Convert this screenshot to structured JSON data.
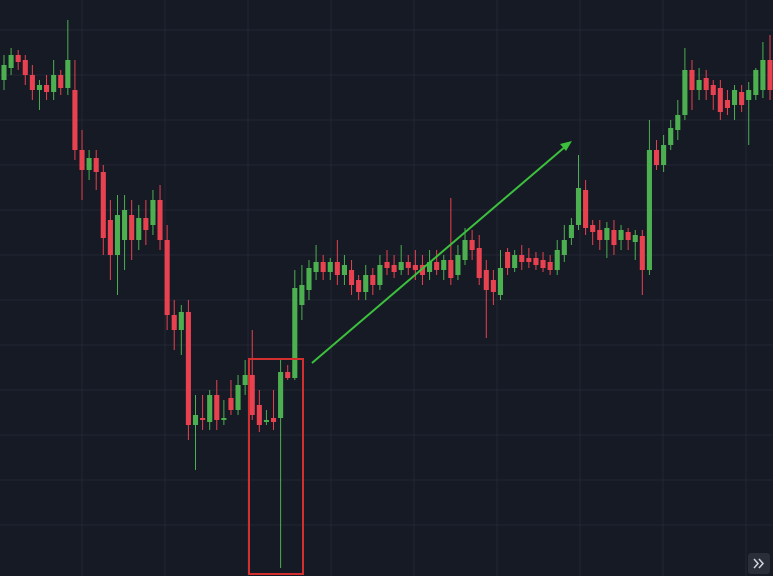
{
  "chart_data": {
    "type": "candlestick",
    "open": [
      496,
      508,
      521,
      516,
      501,
      486,
      491,
      484,
      501,
      488,
      486,
      426,
      406,
      418,
      404,
      356,
      321,
      336,
      361,
      336,
      358,
      351,
      376,
      336,
      261,
      246,
      264,
      151,
      158,
      154,
      181,
      156,
      178,
      166,
      191,
      201,
      171,
      154,
      158,
      158,
      204,
      198,
      271,
      286,
      304,
      314,
      304,
      314,
      301,
      306,
      296,
      284,
      301,
      291,
      314,
      311,
      306,
      314,
      311,
      311,
      304,
      314,
      306,
      316,
      301,
      316,
      336,
      328,
      306,
      296,
      281,
      324,
      308,
      321,
      318,
      318,
      316,
      314,
      306,
      321,
      338,
      351,
      386,
      351,
      346,
      336,
      346,
      336,
      344,
      334,
      340,
      306,
      426,
      411,
      431,
      446,
      461,
      506,
      486,
      498,
      491,
      488,
      476,
      471,
      484,
      476,
      481,
      486,
      516
    ],
    "high": [
      521,
      528,
      526,
      521,
      511,
      496,
      501,
      516,
      506,
      556,
      516,
      446,
      426,
      426,
      411,
      376,
      381,
      381,
      376,
      371,
      376,
      386,
      391,
      351,
      276,
      271,
      276,
      181,
      181,
      186,
      196,
      176,
      196,
      201,
      216,
      246,
      186,
      166,
      186,
      216,
      211,
      306,
      311,
      316,
      331,
      321,
      318,
      336,
      321,
      316,
      301,
      311,
      308,
      321,
      326,
      321,
      331,
      321,
      326,
      321,
      326,
      326,
      321,
      378,
      331,
      348,
      346,
      341,
      316,
      306,
      326,
      328,
      326,
      331,
      328,
      324,
      324,
      321,
      336,
      351,
      358,
      421,
      396,
      356,
      356,
      354,
      356,
      351,
      348,
      346,
      346,
      456,
      436,
      441,
      456,
      476,
      528,
      516,
      508,
      506,
      496,
      496,
      486,
      491,
      491,
      494,
      508,
      534,
      541
    ],
    "low": [
      486,
      501,
      506,
      491,
      476,
      466,
      476,
      476,
      481,
      481,
      416,
      376,
      396,
      386,
      321,
      296,
      281,
      306,
      316,
      326,
      331,
      341,
      326,
      246,
      226,
      221,
      136,
      106,
      146,
      146,
      146,
      151,
      161,
      161,
      181,
      156,
      144,
      151,
      146,
      8,
      196,
      196,
      256,
      276,
      296,
      296,
      296,
      291,
      291,
      281,
      276,
      276,
      281,
      286,
      301,
      298,
      301,
      301,
      296,
      291,
      296,
      301,
      296,
      291,
      296,
      311,
      316,
      291,
      238,
      271,
      276,
      301,
      304,
      306,
      308,
      306,
      304,
      301,
      301,
      314,
      331,
      346,
      341,
      331,
      326,
      318,
      321,
      326,
      326,
      316,
      281,
      301,
      406,
      404,
      426,
      436,
      456,
      466,
      476,
      476,
      466,
      456,
      461,
      456,
      464,
      431,
      476,
      478,
      476
    ],
    "close": [
      511,
      521,
      514,
      501,
      486,
      491,
      484,
      501,
      488,
      516,
      426,
      406,
      418,
      404,
      338,
      321,
      361,
      366,
      336,
      358,
      346,
      376,
      336,
      261,
      246,
      264,
      151,
      161,
      156,
      181,
      156,
      158,
      166,
      191,
      201,
      161,
      151,
      156,
      154,
      204,
      198,
      288,
      291,
      308,
      314,
      304,
      314,
      301,
      311,
      291,
      284,
      301,
      291,
      311,
      308,
      304,
      314,
      308,
      306,
      301,
      314,
      306,
      316,
      298,
      321,
      336,
      326,
      298,
      286,
      284,
      308,
      308,
      321,
      314,
      314,
      311,
      308,
      306,
      326,
      336,
      351,
      388,
      348,
      344,
      336,
      348,
      331,
      346,
      336,
      341,
      306,
      426,
      411,
      431,
      448,
      461,
      506,
      486,
      496,
      486,
      481,
      464,
      468,
      486,
      471,
      486,
      506,
      516,
      486
    ],
    "up_color": "#4caf50",
    "down_color": "#e8414f",
    "ylim": [
      0,
      576
    ],
    "grid": true
  }
}
